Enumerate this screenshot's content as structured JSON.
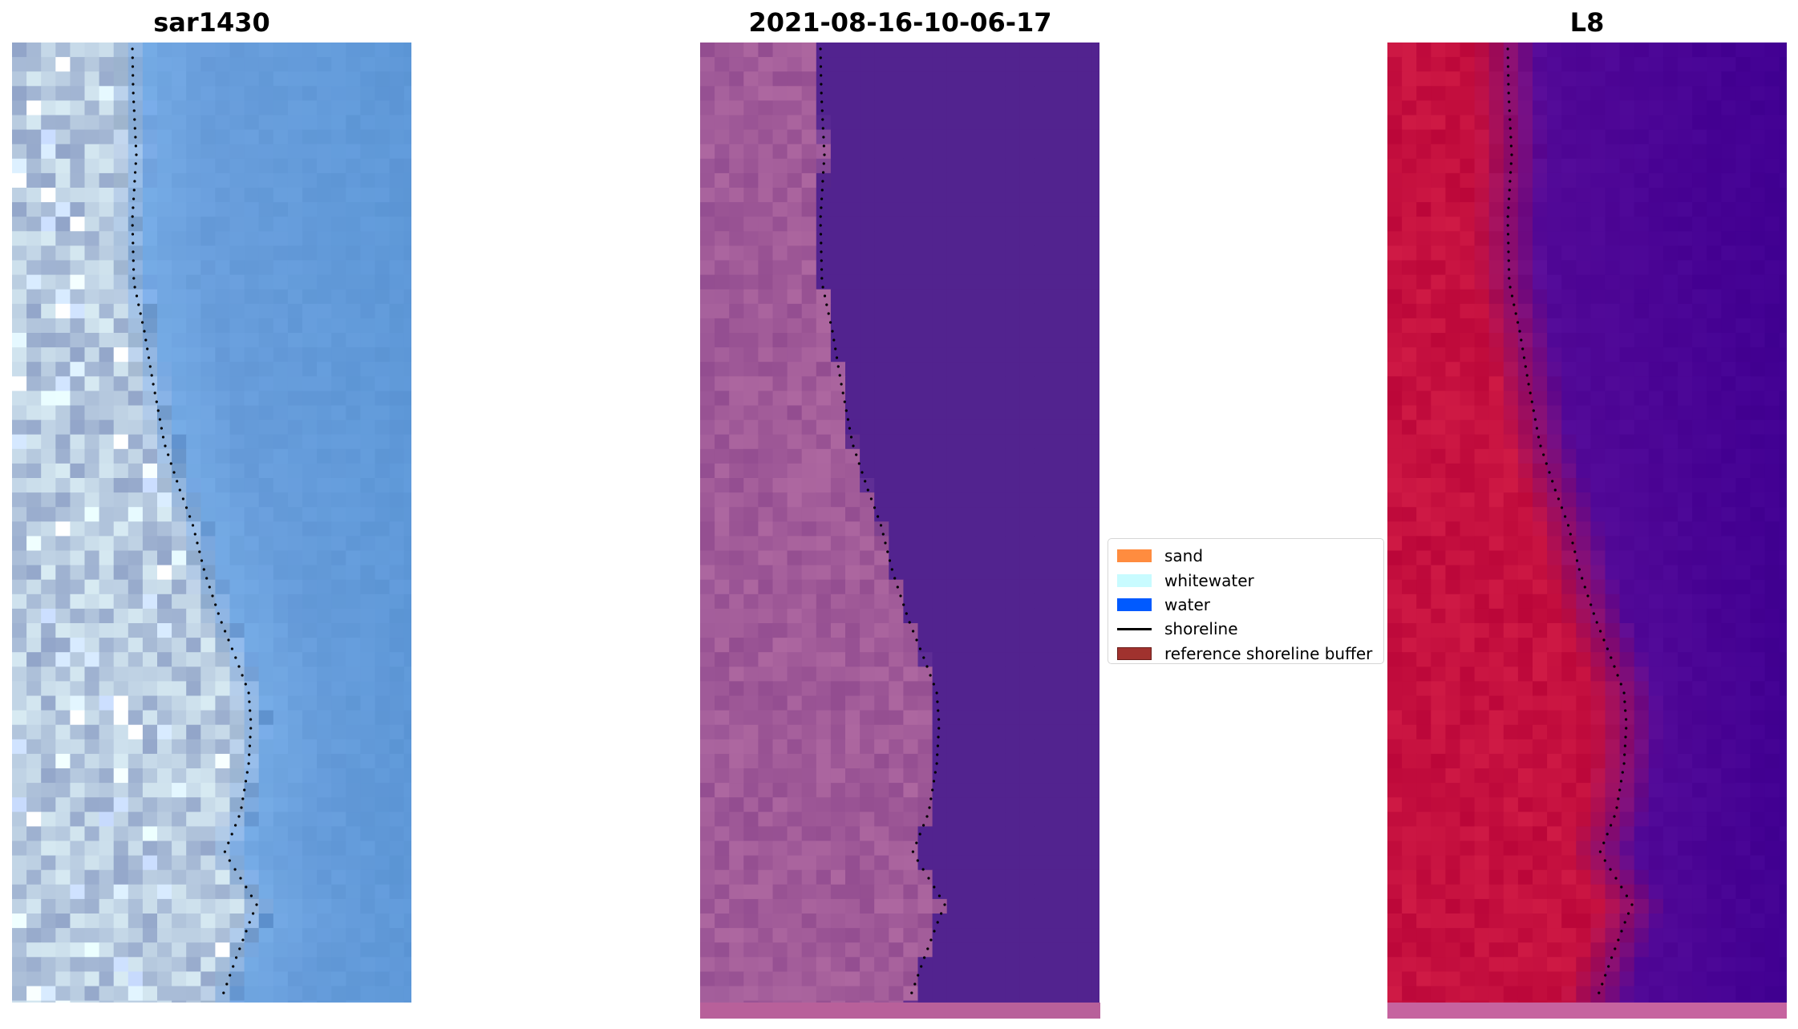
{
  "panels": [
    {
      "title": "sar1430",
      "kind": "rgb"
    },
    {
      "title": "2021-08-16-10-06-17",
      "kind": "classified"
    },
    {
      "title": "L8",
      "kind": "index"
    }
  ],
  "legend": {
    "items": [
      {
        "label": "sand",
        "color": "#ff8c3f",
        "type": "patch"
      },
      {
        "label": "whitewater",
        "color": "#c8fbff",
        "type": "patch"
      },
      {
        "label": "water",
        "color": "#005aff",
        "type": "patch"
      },
      {
        "label": "shoreline",
        "color": "#000000",
        "type": "line"
      },
      {
        "label": "reference shoreline buffer",
        "color": "#a0322e",
        "type": "patch-edge"
      }
    ]
  },
  "colors": {
    "land_rgb": "#b5c8de",
    "water_rgb": "#6c9fdc",
    "land_classified": "#a05a98",
    "water_classified": "#52238f",
    "land_index": "#c5103f",
    "water_index": "#550a98"
  }
}
